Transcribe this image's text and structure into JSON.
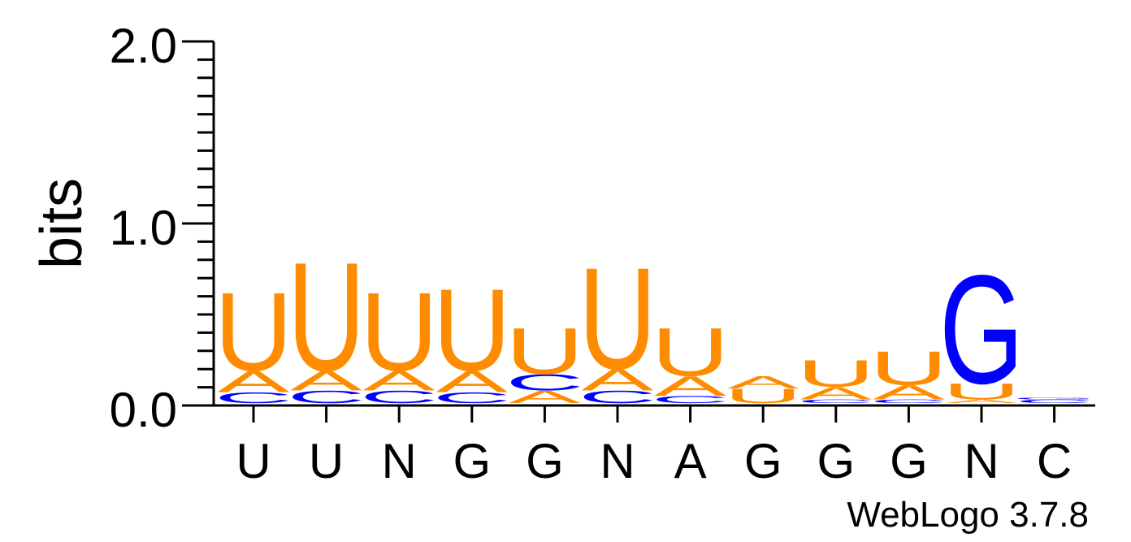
{
  "chart_data": {
    "type": "sequence-logo",
    "ylabel": "bits",
    "ylim": [
      0,
      2
    ],
    "yticks": [
      "0.0",
      "1.0",
      "2.0"
    ],
    "credit": "WebLogo 3.7.8",
    "colors": {
      "U": "#ff8c00",
      "A": "#ff8c00",
      "G": "#0000ff",
      "C": "#0000ff"
    },
    "positions": [
      {
        "label": "U",
        "stack": [
          {
            "letter": "C",
            "bits": 0.06
          },
          {
            "letter": "A",
            "bits": 0.12
          },
          {
            "letter": "U",
            "bits": 0.44
          }
        ]
      },
      {
        "label": "U",
        "stack": [
          {
            "letter": "C",
            "bits": 0.07
          },
          {
            "letter": "A",
            "bits": 0.11
          },
          {
            "letter": "U",
            "bits": 0.61
          }
        ]
      },
      {
        "label": "N",
        "stack": [
          {
            "letter": "C",
            "bits": 0.07
          },
          {
            "letter": "A",
            "bits": 0.11
          },
          {
            "letter": "U",
            "bits": 0.44
          }
        ]
      },
      {
        "label": "G",
        "stack": [
          {
            "letter": "C",
            "bits": 0.06
          },
          {
            "letter": "A",
            "bits": 0.12
          },
          {
            "letter": "U",
            "bits": 0.46
          }
        ]
      },
      {
        "label": "G",
        "stack": [
          {
            "letter": "A",
            "bits": 0.07
          },
          {
            "letter": "C",
            "bits": 0.09
          },
          {
            "letter": "U",
            "bits": 0.26
          }
        ]
      },
      {
        "label": "N",
        "stack": [
          {
            "letter": "C",
            "bits": 0.07
          },
          {
            "letter": "A",
            "bits": 0.12
          },
          {
            "letter": "U",
            "bits": 0.57
          }
        ]
      },
      {
        "label": "A",
        "stack": [
          {
            "letter": "C",
            "bits": 0.04
          },
          {
            "letter": "A",
            "bits": 0.11
          },
          {
            "letter": "U",
            "bits": 0.27
          }
        ]
      },
      {
        "label": "G",
        "stack": [
          {
            "letter": "U",
            "bits": 0.08
          },
          {
            "letter": "A",
            "bits": 0.07
          }
        ]
      },
      {
        "label": "G",
        "stack": [
          {
            "letter": "C",
            "bits": 0.02
          },
          {
            "letter": "A",
            "bits": 0.07
          },
          {
            "letter": "U",
            "bits": 0.15
          }
        ]
      },
      {
        "label": "G",
        "stack": [
          {
            "letter": "C",
            "bits": 0.02
          },
          {
            "letter": "A",
            "bits": 0.08
          },
          {
            "letter": "U",
            "bits": 0.19
          }
        ]
      },
      {
        "label": "N",
        "stack": [
          {
            "letter": "A",
            "bits": 0.02
          },
          {
            "letter": "U",
            "bits": 0.09
          },
          {
            "letter": "G",
            "bits": 0.61
          }
        ]
      },
      {
        "label": "C",
        "stack": [
          {
            "letter": "C",
            "bits": 0.02
          },
          {
            "letter": "G",
            "bits": 0.01
          }
        ]
      }
    ]
  }
}
